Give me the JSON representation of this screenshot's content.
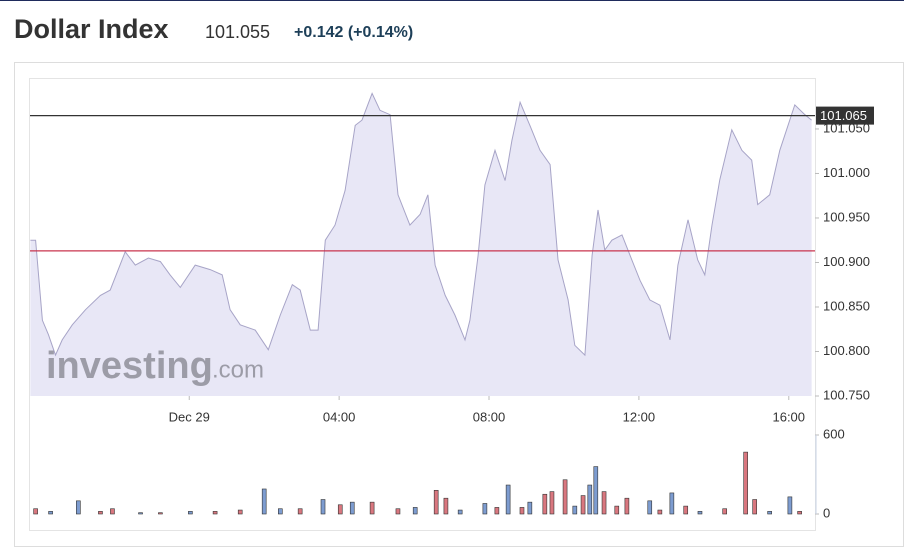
{
  "header": {
    "title": "Dollar Index",
    "price": "101.055",
    "change": "+0.142 (+0.14%)"
  },
  "watermark": {
    "brand": "investing",
    "suffix": ".com"
  },
  "chart_data": [
    {
      "type": "area",
      "color": "#a7a4c7",
      "fill": "#e8e7f6",
      "x": [
        -4.24,
        -4.1,
        -3.92,
        -3.76,
        -3.57,
        -3.39,
        -3.12,
        -2.77,
        -2.37,
        -2.11,
        -1.71,
        -1.44,
        -1.09,
        -0.77,
        -0.51,
        -0.24,
        0.16,
        0.56,
        0.88,
        1.09,
        1.36,
        1.76,
        2.11,
        2.43,
        2.75,
        2.96,
        3.23,
        3.44,
        3.63,
        3.89,
        4.16,
        4.43,
        4.61,
        4.88,
        5.09,
        5.36,
        5.57,
        5.89,
        6.16,
        6.37,
        6.56,
        6.83,
        7.09,
        7.36,
        7.49,
        7.71,
        7.89,
        8.16,
        8.43,
        8.61,
        8.83,
        9.09,
        9.36,
        9.63,
        9.84,
        10.11,
        10.29,
        10.56,
        10.75,
        10.91,
        11.09,
        11.28,
        11.55,
        11.81,
        12.03,
        12.29,
        12.56,
        12.83,
        13.04,
        13.31,
        13.57,
        13.76,
        13.95,
        14.16,
        14.48,
        14.75,
        15.01,
        15.17,
        15.49,
        15.76,
        16.16,
        16.43,
        16.61
      ],
      "values": [
        100.925,
        100.925,
        100.835,
        100.819,
        100.796,
        100.813,
        100.83,
        100.847,
        100.863,
        100.869,
        100.912,
        100.897,
        100.905,
        100.901,
        100.886,
        100.872,
        100.897,
        100.892,
        100.886,
        100.847,
        100.83,
        100.824,
        100.802,
        100.841,
        100.875,
        100.869,
        100.824,
        100.824,
        100.925,
        100.942,
        100.981,
        101.054,
        101.06,
        101.09,
        101.071,
        101.066,
        100.976,
        100.942,
        100.954,
        100.976,
        100.897,
        100.863,
        100.841,
        100.813,
        100.835,
        100.908,
        100.987,
        101.026,
        100.992,
        101.037,
        101.08,
        101.054,
        101.026,
        101.01,
        100.903,
        100.858,
        100.807,
        100.796,
        100.908,
        100.959,
        100.914,
        100.925,
        100.931,
        100.903,
        100.88,
        100.858,
        100.852,
        100.813,
        100.897,
        100.948,
        100.903,
        100.886,
        100.942,
        100.993,
        101.049,
        101.026,
        101.015,
        100.965,
        100.976,
        101.026,
        101.077,
        101.066,
        101.06
      ],
      "xlim": [
        -4.25,
        16.7
      ],
      "xticks": [
        {
          "value": 0,
          "label": "Dec 29"
        },
        {
          "value": 4,
          "label": "04:00"
        },
        {
          "value": 8,
          "label": "08:00"
        },
        {
          "value": 12,
          "label": "12:00"
        },
        {
          "value": 16,
          "label": "16:00"
        }
      ],
      "ylim": [
        100.75,
        101.105
      ],
      "yticks": [
        {
          "value": 100.75,
          "label": "100.750"
        },
        {
          "value": 100.8,
          "label": "100.800"
        },
        {
          "value": 100.85,
          "label": "100.850"
        },
        {
          "value": 100.9,
          "label": "100.900"
        },
        {
          "value": 100.95,
          "label": "100.950"
        },
        {
          "value": 101,
          "label": "101.000"
        },
        {
          "value": 101.05,
          "label": "101.050"
        }
      ],
      "lines": [
        {
          "value": 101.065,
          "label": "101.065",
          "color": "#333333"
        },
        {
          "value": 100.913,
          "color": "#c8354f"
        }
      ]
    },
    {
      "type": "bar",
      "x": [
        -4.1,
        -3.7,
        -2.96,
        -2.37,
        -2.05,
        -1.3,
        -0.77,
        0.03,
        0.69,
        1.36,
        2,
        2.43,
        2.96,
        3.57,
        4.03,
        4.35,
        4.88,
        5.57,
        6.03,
        6.59,
        6.85,
        7.23,
        7.89,
        8.21,
        8.51,
        8.88,
        9.09,
        9.49,
        9.68,
        10.03,
        10.29,
        10.51,
        10.69,
        10.85,
        11.07,
        11.41,
        11.68,
        12.29,
        12.56,
        12.88,
        13.25,
        13.63,
        14.29,
        14.85,
        15.09,
        15.49,
        16.03,
        16.29
      ],
      "values": [
        40,
        20,
        100,
        20,
        40,
        10,
        10,
        20,
        20,
        30,
        190,
        40,
        40,
        110,
        70,
        90,
        90,
        40,
        50,
        180,
        120,
        30,
        80,
        50,
        220,
        50,
        90,
        150,
        170,
        260,
        60,
        140,
        220,
        360,
        170,
        60,
        120,
        100,
        30,
        160,
        60,
        20,
        40,
        470,
        110,
        20,
        130,
        20
      ],
      "colors": [
        "#d9777f",
        "#7d9cd0",
        "#7d9cd0",
        "#d9777f",
        "#d9777f",
        "#7d9cd0",
        "#d9777f",
        "#7d9cd0",
        "#d9777f",
        "#d9777f",
        "#7d9cd0",
        "#7d9cd0",
        "#d9777f",
        "#7d9cd0",
        "#d9777f",
        "#7d9cd0",
        "#d9777f",
        "#d9777f",
        "#7d9cd0",
        "#d9777f",
        "#d9777f",
        "#7d9cd0",
        "#7d9cd0",
        "#d9777f",
        "#7d9cd0",
        "#d9777f",
        "#7d9cd0",
        "#d9777f",
        "#d9777f",
        "#d9777f",
        "#7d9cd0",
        "#d9777f",
        "#7d9cd0",
        "#7d9cd0",
        "#d9777f",
        "#d9777f",
        "#d9777f",
        "#7d9cd0",
        "#d9777f",
        "#7d9cd0",
        "#d9777f",
        "#7d9cd0",
        "#d9777f",
        "#d9777f",
        "#d9777f",
        "#7d9cd0",
        "#7d9cd0",
        "#d9777f"
      ],
      "ylim": [
        0,
        600
      ],
      "yticks": [
        0,
        600
      ]
    }
  ]
}
